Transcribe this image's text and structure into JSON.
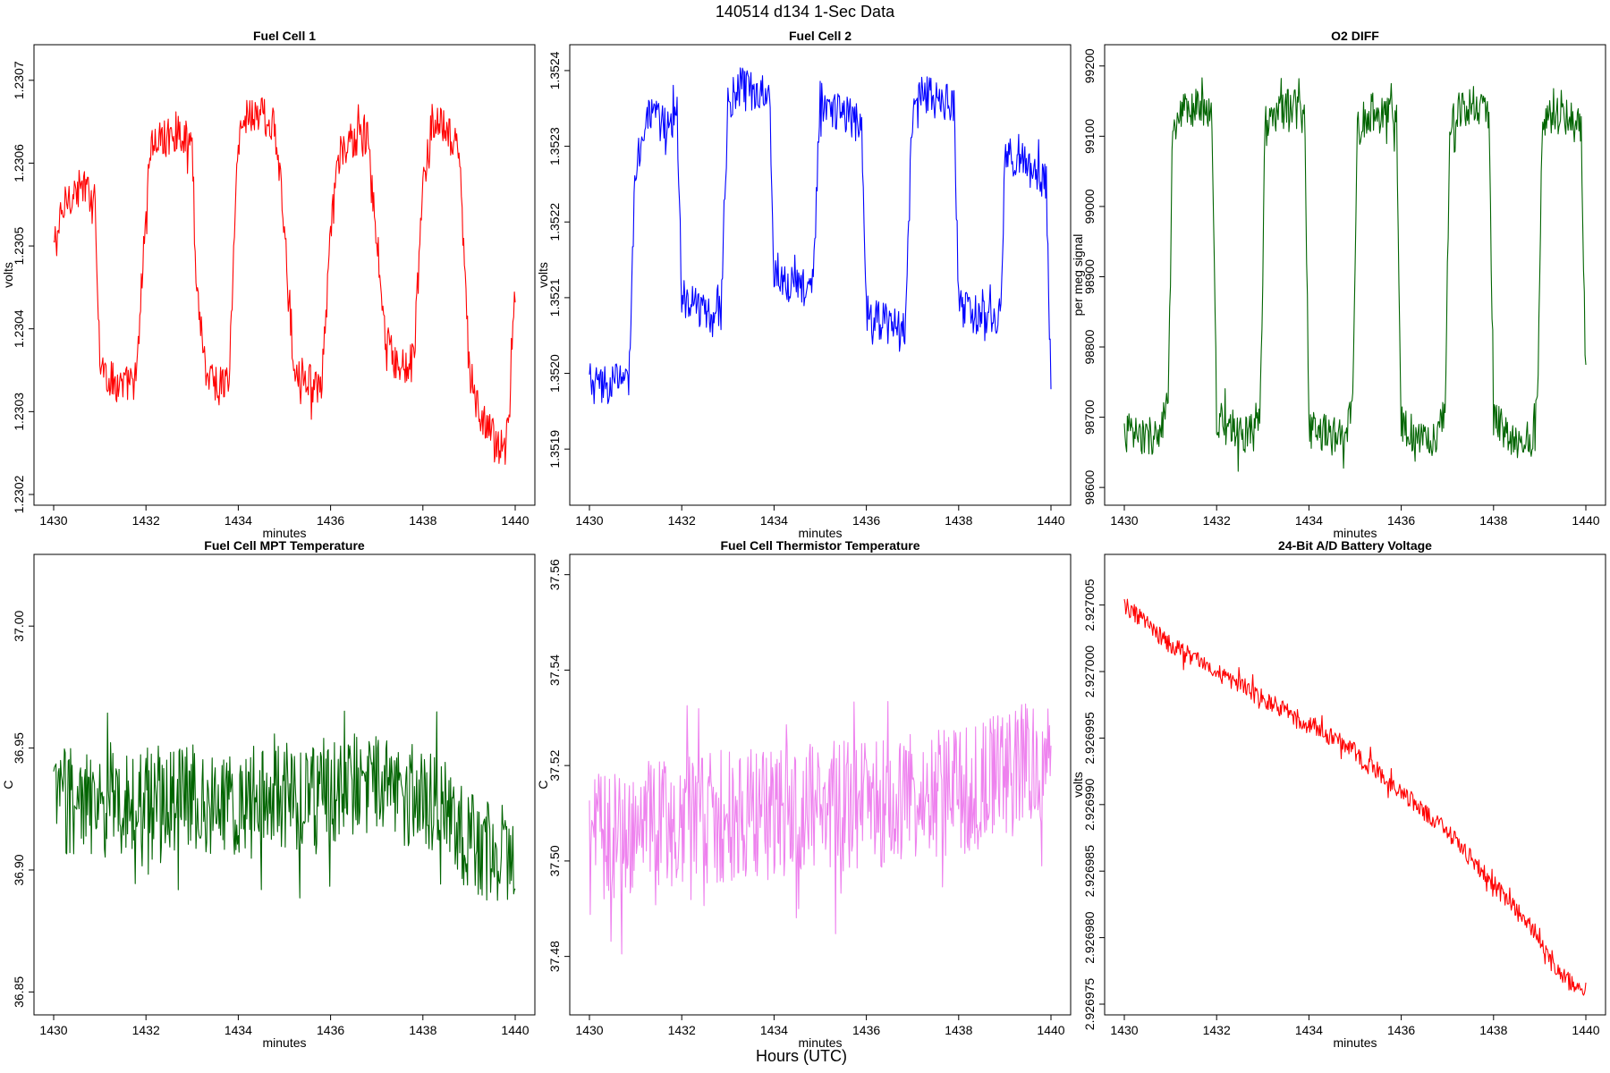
{
  "figure": {
    "title": "140514   d134   1-Sec Data",
    "xlabel": "Hours (UTC)"
  },
  "chart_data": [
    {
      "type": "line",
      "title": "Fuel Cell 1",
      "xlabel": "minutes",
      "ylabel": "volts",
      "xlim": [
        1430,
        1440
      ],
      "ylim": [
        1.2302,
        1.23073
      ],
      "xticks": [
        1430,
        1432,
        1434,
        1436,
        1438,
        1440
      ],
      "yticks": [
        "1.2302",
        "1.2303",
        "1.2304",
        "1.2305",
        "1.2306",
        "1.2307"
      ],
      "ytick_values": [
        1.2302,
        1.2303,
        1.2304,
        1.2305,
        1.2306,
        1.2307
      ],
      "series": [
        {
          "color": "#ff0000",
          "x": [
            1430,
            1430.3,
            1430.6,
            1430.9,
            1431.0,
            1431.2,
            1431.5,
            1431.8,
            1431.95,
            1432.1,
            1432.4,
            1432.7,
            1433.0,
            1433.1,
            1433.3,
            1433.6,
            1433.8,
            1434.0,
            1434.2,
            1434.5,
            1434.8,
            1435.0,
            1435.2,
            1435.5,
            1435.8,
            1436.0,
            1436.2,
            1436.5,
            1436.8,
            1437.0,
            1437.2,
            1437.5,
            1437.8,
            1438.0,
            1438.2,
            1438.5,
            1438.8,
            1439.0,
            1439.2,
            1439.5,
            1439.8,
            1440
          ],
          "y": [
            1.2305,
            1.23056,
            1.23057,
            1.23056,
            1.23036,
            1.23034,
            1.23033,
            1.23034,
            1.2305,
            1.23062,
            1.23063,
            1.23064,
            1.23062,
            1.23045,
            1.23035,
            1.23033,
            1.23034,
            1.23063,
            1.23066,
            1.23066,
            1.23064,
            1.23052,
            1.23036,
            1.23034,
            1.23032,
            1.23052,
            1.23061,
            1.23063,
            1.23063,
            1.2305,
            1.23038,
            1.23035,
            1.23036,
            1.23057,
            1.23065,
            1.23064,
            1.23061,
            1.23035,
            1.2303,
            1.23027,
            1.23025,
            1.23045
          ]
        }
      ]
    },
    {
      "type": "line",
      "title": "Fuel Cell 2",
      "xlabel": "minutes",
      "ylabel": "volts",
      "xlim": [
        1430,
        1440
      ],
      "ylim": [
        1.35184,
        1.35242
      ],
      "xticks": [
        1430,
        1432,
        1434,
        1436,
        1438,
        1440
      ],
      "yticks": [
        "1.3519",
        "1.3520",
        "1.3521",
        "1.3522",
        "1.3523",
        "1.3524"
      ],
      "ytick_values": [
        1.3519,
        1.352,
        1.3521,
        1.3522,
        1.3523,
        1.3524
      ],
      "series": [
        {
          "color": "#0000ff",
          "x": [
            1430,
            1430.3,
            1430.6,
            1430.85,
            1431.0,
            1431.3,
            1431.6,
            1431.9,
            1432.0,
            1432.3,
            1432.6,
            1432.85,
            1433.0,
            1433.3,
            1433.6,
            1433.9,
            1434.0,
            1434.3,
            1434.6,
            1434.85,
            1435.0,
            1435.3,
            1435.6,
            1435.9,
            1436.0,
            1436.3,
            1436.6,
            1436.85,
            1437.0,
            1437.3,
            1437.6,
            1437.9,
            1438.0,
            1438.3,
            1438.6,
            1438.9,
            1439.0,
            1439.3,
            1439.6,
            1439.9,
            1440
          ],
          "y": [
            1.35199,
            1.35198,
            1.35199,
            1.35199,
            1.35228,
            1.35234,
            1.35233,
            1.35234,
            1.3521,
            1.35209,
            1.35208,
            1.35208,
            1.35236,
            1.35238,
            1.35237,
            1.35238,
            1.35214,
            1.35212,
            1.35211,
            1.35212,
            1.35236,
            1.35235,
            1.35234,
            1.35233,
            1.35208,
            1.35207,
            1.35206,
            1.35206,
            1.35236,
            1.35237,
            1.35236,
            1.35236,
            1.35209,
            1.35208,
            1.35207,
            1.35207,
            1.35228,
            1.35229,
            1.35227,
            1.35225,
            1.35198
          ]
        }
      ]
    },
    {
      "type": "line",
      "title": "O2 DIFF",
      "xlabel": "minutes",
      "ylabel": "per meg signal",
      "xlim": [
        1430,
        1440
      ],
      "ylim": [
        98590,
        99215
      ],
      "xticks": [
        1430,
        1432,
        1434,
        1436,
        1438,
        1440
      ],
      "yticks": [
        "98600",
        "98700",
        "98800",
        "98900",
        "99000",
        "99100",
        "99200"
      ],
      "ytick_values": [
        98600,
        98700,
        98800,
        98900,
        99000,
        99100,
        99200
      ],
      "series": [
        {
          "color": "#006400",
          "x": [
            1430,
            1430.4,
            1430.8,
            1430.95,
            1431.05,
            1431.3,
            1431.6,
            1431.9,
            1432.0,
            1432.4,
            1432.8,
            1432.95,
            1433.05,
            1433.3,
            1433.6,
            1433.9,
            1434.0,
            1434.4,
            1434.8,
            1434.95,
            1435.05,
            1435.3,
            1435.6,
            1435.9,
            1436.0,
            1436.4,
            1436.8,
            1436.95,
            1437.05,
            1437.3,
            1437.6,
            1437.9,
            1438.0,
            1438.4,
            1438.8,
            1438.95,
            1439.05,
            1439.3,
            1439.6,
            1439.9,
            1440
          ],
          "y": [
            98680,
            98670,
            98680,
            98720,
            99100,
            99135,
            99140,
            99135,
            98700,
            98675,
            98680,
            98720,
            99110,
            99135,
            99140,
            99130,
            98690,
            98675,
            98670,
            98720,
            99110,
            99135,
            99130,
            99130,
            98690,
            98670,
            98675,
            98720,
            99110,
            99140,
            99145,
            99135,
            98700,
            98670,
            98665,
            98720,
            99110,
            99130,
            99125,
            99110,
            98755
          ]
        }
      ]
    },
    {
      "type": "line",
      "title": "Fuel Cell MPT Temperature",
      "xlabel": "minutes",
      "ylabel": "C",
      "xlim": [
        1430,
        1440
      ],
      "ylim": [
        36.845,
        37.025
      ],
      "xticks": [
        1430,
        1432,
        1434,
        1436,
        1438,
        1440
      ],
      "yticks": [
        "36.85",
        "36.90",
        "36.95",
        "37.00"
      ],
      "ytick_values": [
        36.85,
        36.9,
        36.95,
        37.0
      ],
      "series": [
        {
          "color": "#006400",
          "x": [
            1430,
            1431,
            1432,
            1433,
            1434,
            1435,
            1436,
            1437,
            1438,
            1438.5,
            1439,
            1440
          ],
          "y": [
            36.93,
            36.925,
            36.93,
            36.93,
            36.925,
            36.93,
            36.93,
            36.935,
            36.93,
            36.925,
            36.91,
            36.905
          ],
          "amplitude": 0.022
        }
      ]
    },
    {
      "type": "line",
      "title": "Fuel Cell Thermistor Temperature",
      "xlabel": "minutes",
      "ylabel": "C",
      "xlim": [
        1430,
        1440
      ],
      "ylim": [
        37.47,
        37.562
      ],
      "xticks": [
        1430,
        1432,
        1434,
        1436,
        1438,
        1440
      ],
      "yticks": [
        "37.48",
        "37.50",
        "37.52",
        "37.54",
        "37.56"
      ],
      "ytick_values": [
        37.48,
        37.5,
        37.52,
        37.54,
        37.56
      ],
      "series": [
        {
          "color": "#ee82ee",
          "x": [
            1430,
            1432,
            1434,
            1436,
            1438,
            1440
          ],
          "y": [
            37.505,
            37.508,
            37.51,
            37.512,
            37.515,
            37.522
          ],
          "amplitude": 0.014
        }
      ]
    },
    {
      "type": "line",
      "title": "24-Bit A/D Battery Voltage",
      "xlabel": "minutes",
      "ylabel": "volts",
      "xlim": [
        1430,
        1440
      ],
      "ylim": [
        2.926975,
        2.927008
      ],
      "xticks": [
        1430,
        1432,
        1434,
        1436,
        1438,
        1440
      ],
      "yticks": [
        "2.926975",
        "2.926980",
        "2.926985",
        "2.926990",
        "2.926995",
        "2.927000",
        "2.927005"
      ],
      "ytick_values": [
        2.926975,
        2.92698,
        2.926985,
        2.92699,
        2.926995,
        2.927,
        2.927005
      ],
      "series": [
        {
          "color": "#ff0000",
          "x": [
            1430,
            1431,
            1432,
            1433,
            1434,
            1435,
            1436,
            1437,
            1438,
            1439,
            1439.5,
            1440
          ],
          "y": [
            2.927005,
            2.927002,
            2.927,
            2.926998,
            2.926996,
            2.926994,
            2.926991,
            2.926988,
            2.926984,
            2.92698,
            2.926977,
            2.926976
          ],
          "amplitude": 7e-07
        }
      ]
    }
  ]
}
